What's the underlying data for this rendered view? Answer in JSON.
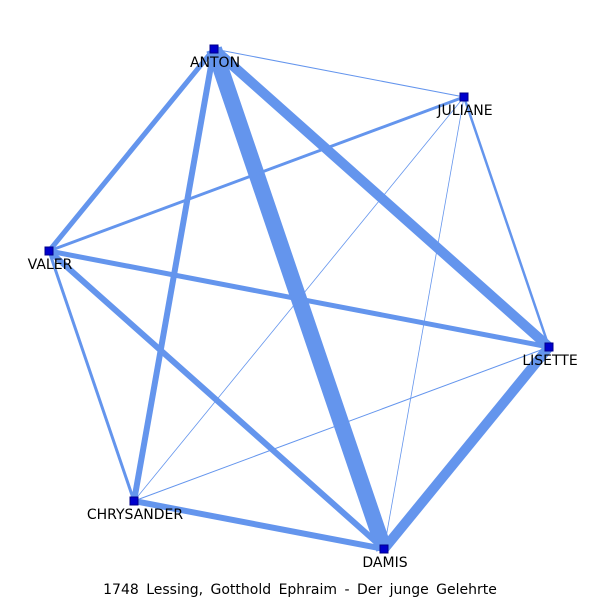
{
  "caption": "1748 Lessing, Gotthold Ephraim - Der junge Gelehrte",
  "colors": {
    "edge": "#6495ED",
    "node": "#0000CD",
    "node_border": "#00008B"
  },
  "nodes": [
    {
      "id": "ANTON",
      "label": "ANTON"
    },
    {
      "id": "JULIANE",
      "label": "JULIANE"
    },
    {
      "id": "VALER",
      "label": "VALER"
    },
    {
      "id": "LISETTE",
      "label": "LISETTE"
    },
    {
      "id": "CHRYSANDER",
      "label": "CHRYSANDER"
    },
    {
      "id": "DAMIS",
      "label": "DAMIS"
    }
  ],
  "edges": [
    {
      "source": "ANTON",
      "target": "DAMIS",
      "weight": 16
    },
    {
      "source": "ANTON",
      "target": "LISETTE",
      "weight": 10
    },
    {
      "source": "DAMIS",
      "target": "LISETTE",
      "weight": 10
    },
    {
      "source": "ANTON",
      "target": "CHRYSANDER",
      "weight": 6
    },
    {
      "source": "VALER",
      "target": "DAMIS",
      "weight": 6
    },
    {
      "source": "CHRYSANDER",
      "target": "DAMIS",
      "weight": 6
    },
    {
      "source": "ANTON",
      "target": "VALER",
      "weight": 5
    },
    {
      "source": "VALER",
      "target": "LISETTE",
      "weight": 5
    },
    {
      "source": "VALER",
      "target": "JULIANE",
      "weight": 3
    },
    {
      "source": "VALER",
      "target": "CHRYSANDER",
      "weight": 3
    },
    {
      "source": "JULIANE",
      "target": "LISETTE",
      "weight": 2.5
    },
    {
      "source": "ANTON",
      "target": "JULIANE",
      "weight": 1
    },
    {
      "source": "JULIANE",
      "target": "CHRYSANDER",
      "weight": 0.8
    },
    {
      "source": "JULIANE",
      "target": "DAMIS",
      "weight": 0.8
    },
    {
      "source": "CHRYSANDER",
      "target": "LISETTE",
      "weight": 1
    }
  ]
}
